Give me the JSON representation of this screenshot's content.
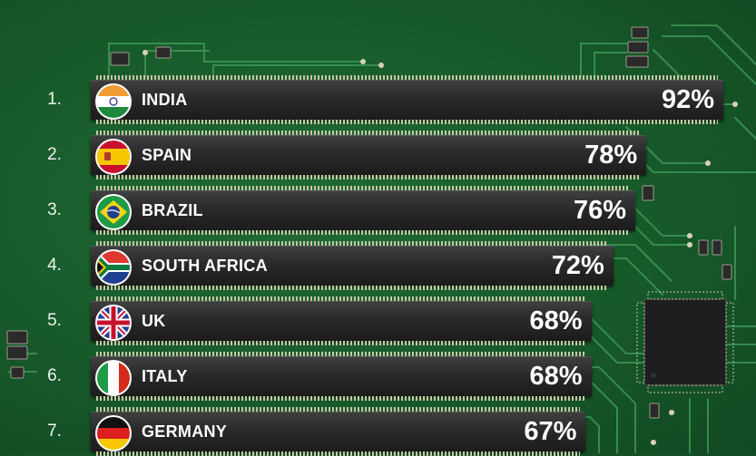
{
  "chart_data": {
    "type": "bar",
    "orientation": "horizontal",
    "categories": [
      "INDIA",
      "SPAIN",
      "BRAZIL",
      "SOUTH AFRICA",
      "UK",
      "ITALY",
      "GERMANY"
    ],
    "ranks": [
      "1.",
      "2.",
      "3.",
      "4.",
      "5.",
      "6.",
      "7."
    ],
    "values": [
      92,
      78,
      76,
      72,
      68,
      68,
      67
    ],
    "labels": [
      "92%",
      "78%",
      "76%",
      "72%",
      "68%",
      "68%",
      "67%"
    ],
    "flags": [
      "india-flag-icon",
      "spain-flag-icon",
      "brazil-flag-icon",
      "south-africa-flag-icon",
      "uk-flag-icon",
      "italy-flag-icon",
      "germany-flag-icon"
    ],
    "title": "",
    "xlabel": "",
    "ylabel": "",
    "grid": false
  },
  "colors": {
    "board": "#1a5e2e",
    "bar": "#2b2b2b",
    "text": "#ffffff"
  }
}
